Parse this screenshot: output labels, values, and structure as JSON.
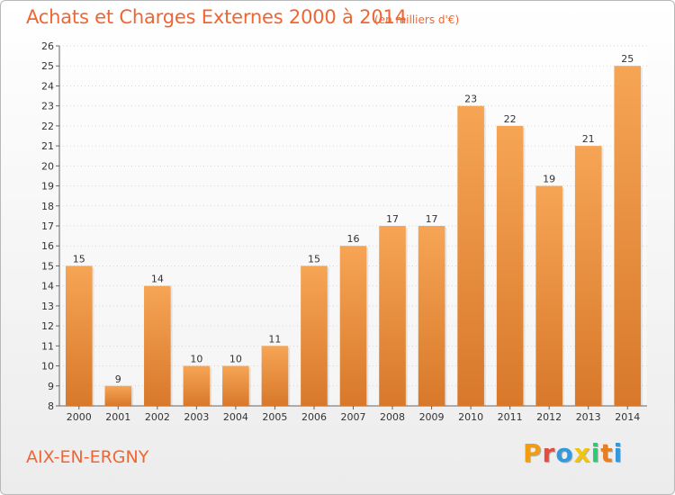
{
  "header": {
    "title": "Achats et Charges Externes 2000 à 2014",
    "unit": "(en milliers d'€)"
  },
  "footer": {
    "city": "AIX-EN-ERGNY",
    "logo": [
      "P",
      "r",
      "o",
      "x",
      "i",
      "t",
      "i"
    ]
  },
  "colors": {
    "accent": "#ee6633",
    "bar_top": "#f6a555",
    "bar_bottom": "#d8782a",
    "logo_letters": [
      "#f39c12",
      "#e74c3c",
      "#3498db",
      "#f1c40f",
      "#2ecc71",
      "#e67e22",
      "#3498db"
    ]
  },
  "chart_data": {
    "type": "bar",
    "categories": [
      "2000",
      "2001",
      "2002",
      "2003",
      "2004",
      "2005",
      "2006",
      "2007",
      "2008",
      "2009",
      "2010",
      "2011",
      "2012",
      "2013",
      "2014"
    ],
    "values": [
      15,
      9,
      14,
      10,
      10,
      11,
      15,
      16,
      17,
      17,
      23,
      22,
      19,
      21,
      25
    ],
    "ylim": [
      8,
      26
    ],
    "yticks": [
      8,
      9,
      10,
      11,
      12,
      13,
      14,
      15,
      16,
      17,
      18,
      19,
      20,
      21,
      22,
      23,
      24,
      25,
      26
    ],
    "grid": true,
    "data_labels": true
  }
}
